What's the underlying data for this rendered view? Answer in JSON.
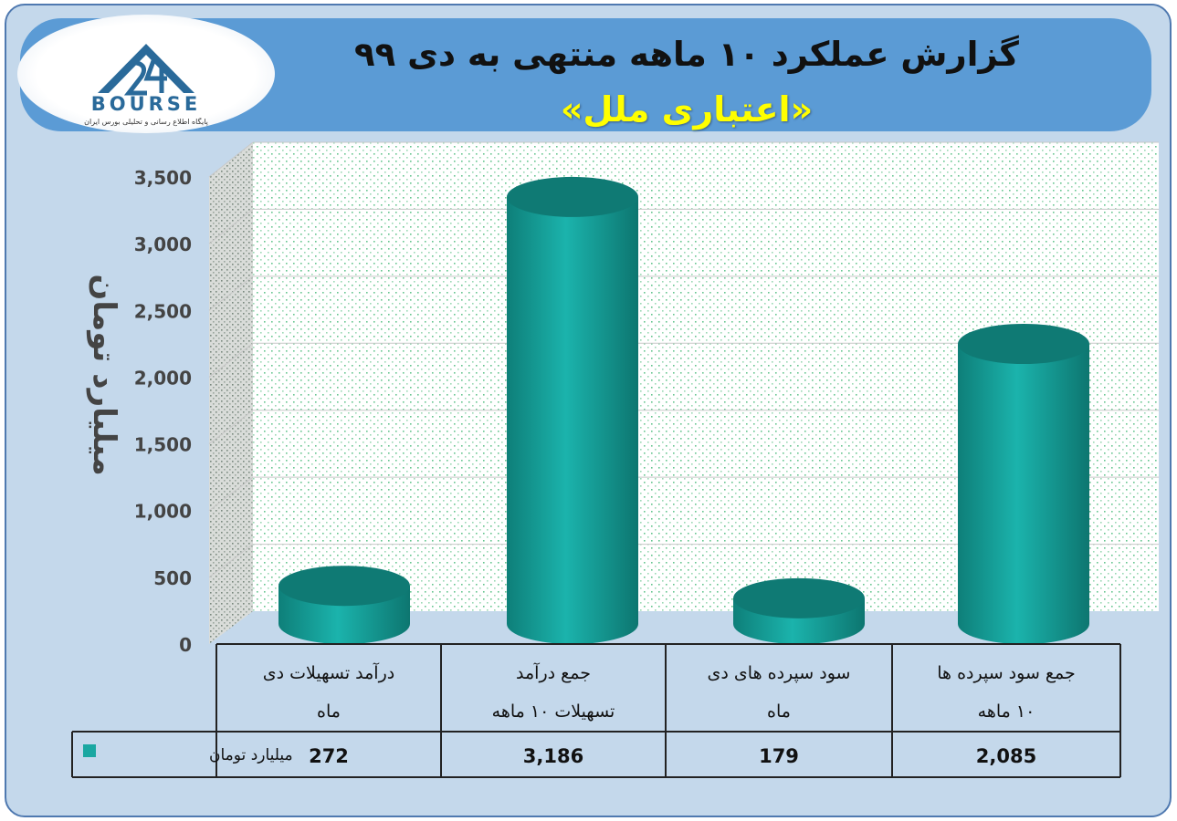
{
  "title": {
    "line1": "گزارش عملکرد ۱۰ ماهه منتهی به دی ۹۹",
    "line2": "«اعتباری ملل»"
  },
  "logo": {
    "brand": "BOURSE",
    "tagline": "پایگاه اطلاع رسانی و تحلیلی بورس ایران",
    "icon": "24-bourse-logo-icon"
  },
  "colors": {
    "bar": "#1aa7a1",
    "bar_top": "#0f7a74",
    "frame": "#c4d8eb",
    "title_band": "#5b9bd5",
    "subtitle": "#ffff00"
  },
  "chart_data": {
    "type": "bar",
    "style": "3d-cylinder",
    "categories": [
      [
        "درآمد تسهیلات دی",
        "ماه"
      ],
      [
        "جمع درآمد",
        "تسهیلات ۱۰ ماهه"
      ],
      [
        "سود سپرده های دی",
        "ماه"
      ],
      [
        "جمع سود سپرده ها",
        "۱۰ ماهه"
      ]
    ],
    "series": [
      {
        "name": "میلیارد تومان",
        "values": [
          272,
          3186,
          179,
          2085
        ]
      }
    ],
    "value_labels": [
      "272",
      "3,186",
      "179",
      "2,085"
    ],
    "ylabel": "میلیارد تومان",
    "ylim": [
      0,
      3500
    ],
    "yticks": [
      0,
      500,
      1000,
      1500,
      2000,
      2500,
      3000,
      3500
    ],
    "ytick_labels": [
      "0",
      "500",
      "1,000",
      "1,500",
      "2,000",
      "2,500",
      "3,000",
      "3,500"
    ],
    "grid": true,
    "legend": "data-table"
  }
}
